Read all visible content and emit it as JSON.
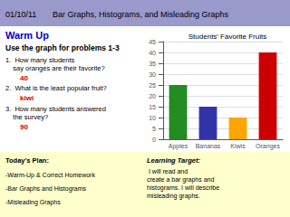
{
  "chart_data": {
    "type": "bar",
    "title": "Students' Favorite Fruits",
    "categories": [
      "Apples",
      "Bananas",
      "Kiwis",
      "Oranges"
    ],
    "values": [
      25,
      15,
      10,
      40
    ],
    "colors": [
      "#228B22",
      "#3333AA",
      "#FFA500",
      "#CC0000"
    ],
    "ylim": [
      0,
      45
    ],
    "yticks": [
      0,
      5,
      10,
      15,
      20,
      25,
      30,
      35,
      40,
      45
    ],
    "grid": true,
    "annotations": [
      "01/10/11",
      "Bar Graphs, Histograms, and Misleading Graphs",
      "Warm Up",
      "Use the graph for problems 1-3",
      "1.  How many students\n    say oranges are their favorite?",
      "40",
      "2.  What is the least popular fruit?",
      "kiwi",
      "3.  How many students answered\n    the survey?",
      "90",
      "Today's Plan:",
      "-Warm-Up & Correct Homework",
      "-Bar Graphs and Histograms",
      "-Misleading Graphs",
      "Learning Target:",
      " I will read and\ncreate a bar graphs and\nhistograms. I will describe\nmisleading graphs."
    ]
  }
}
